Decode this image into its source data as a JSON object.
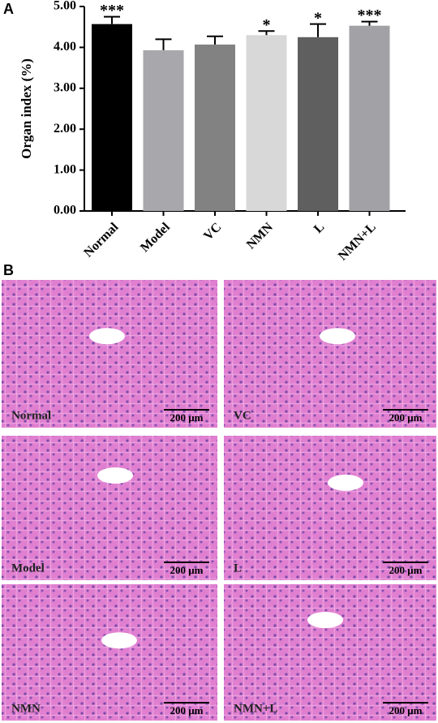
{
  "panel_labels": [
    "A",
    "B"
  ],
  "chart_data": {
    "type": "bar",
    "y_label": "Organ index (%)",
    "categories": [
      "Normal",
      "Model",
      "VC",
      "NMN",
      "L",
      "NMN+L"
    ],
    "values": [
      4.57,
      3.93,
      4.07,
      4.3,
      4.25,
      4.53
    ],
    "errors": [
      0.18,
      0.27,
      0.2,
      0.1,
      0.32,
      0.1
    ],
    "significance": [
      "***",
      null,
      null,
      "*",
      "*",
      "***"
    ],
    "colors": [
      "#000000",
      "#a7a7ac",
      "#828282",
      "#d8d8d8",
      "#5f5f5f",
      "#a2a2a6"
    ],
    "ylim": [
      0,
      5
    ],
    "yticks": [
      {
        "value": 0,
        "label": "0.00"
      },
      {
        "value": 1,
        "label": "1.00"
      },
      {
        "value": 2,
        "label": "2.00"
      },
      {
        "value": 3,
        "label": "3.00"
      },
      {
        "value": 4,
        "label": "4.00"
      },
      {
        "value": 5,
        "label": "5.00"
      }
    ]
  },
  "micrographs": [
    {
      "label": "Normal",
      "scale_bar": "200 μm"
    },
    {
      "label": "VC",
      "scale_bar": "200 μm"
    },
    {
      "label": "Model",
      "scale_bar": "200 μm"
    },
    {
      "label": "L",
      "scale_bar": "200 μm"
    },
    {
      "label": "NMN",
      "scale_bar": "200 μm"
    },
    {
      "label": "NMN+L",
      "scale_bar": "200 μm"
    }
  ]
}
